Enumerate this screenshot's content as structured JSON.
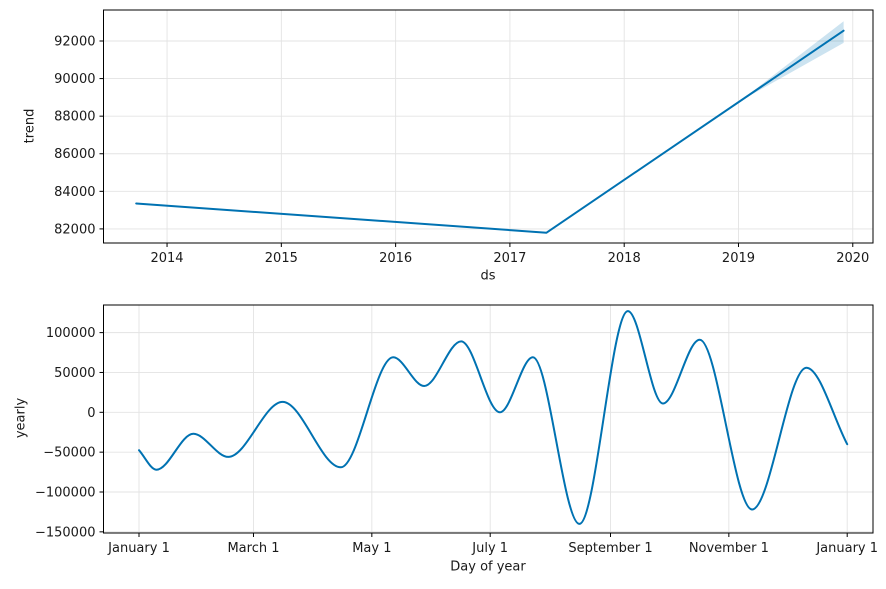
{
  "colors": {
    "line": "#0072B2",
    "band_fill": "rgba(0,114,178,0.2)",
    "grid": "#e3e3e3",
    "spine": "#000000",
    "text": "#1a1a1a",
    "background": "#ffffff"
  },
  "chart_data": [
    {
      "type": "line",
      "id": "trend",
      "title": "",
      "xlabel": "ds",
      "ylabel": "trend",
      "grid": true,
      "legend": "none",
      "xlim": [
        2013.444,
        2020.177
      ],
      "ylim": [
        81250,
        93650
      ],
      "x_ticks": [
        {
          "v": 2014,
          "label": "2014"
        },
        {
          "v": 2015,
          "label": "2015"
        },
        {
          "v": 2016,
          "label": "2016"
        },
        {
          "v": 2017,
          "label": "2017"
        },
        {
          "v": 2018,
          "label": "2018"
        },
        {
          "v": 2019,
          "label": "2019"
        },
        {
          "v": 2020,
          "label": "2020"
        }
      ],
      "y_ticks": [
        {
          "v": 82000,
          "label": "82000"
        },
        {
          "v": 84000,
          "label": "84000"
        },
        {
          "v": 86000,
          "label": "86000"
        },
        {
          "v": 88000,
          "label": "88000"
        },
        {
          "v": 90000,
          "label": "90000"
        },
        {
          "v": 92000,
          "label": "92000"
        }
      ],
      "series": [
        {
          "name": "trend",
          "smooth": false,
          "x": [
            2013.73,
            2017.32,
            2019.92
          ],
          "y": [
            83350,
            81800,
            92550
          ]
        }
      ],
      "band": {
        "name": "trend-uncertainty",
        "x": [
          2019.01,
          2019.92
        ],
        "upper": [
          88790,
          93050
        ],
        "lower": [
          88790,
          91900
        ]
      }
    },
    {
      "type": "line",
      "id": "yearly",
      "title": "",
      "xlabel": "Day of year",
      "ylabel": "yearly",
      "grid": true,
      "legend": "none",
      "xlim": [
        -18.3,
        378.3
      ],
      "ylim": [
        -151450,
        134650
      ],
      "x_ticks": [
        {
          "v": 0,
          "label": "January 1"
        },
        {
          "v": 59,
          "label": "March 1"
        },
        {
          "v": 120,
          "label": "May 1"
        },
        {
          "v": 181,
          "label": "July 1"
        },
        {
          "v": 243,
          "label": "September 1"
        },
        {
          "v": 304,
          "label": "November 1"
        },
        {
          "v": 365,
          "label": "January 1"
        }
      ],
      "y_ticks": [
        {
          "v": -150000,
          "label": "−150000"
        },
        {
          "v": -100000,
          "label": "−100000"
        },
        {
          "v": -50000,
          "label": "−50000"
        },
        {
          "v": 0,
          "label": "0"
        },
        {
          "v": 50000,
          "label": "50000"
        },
        {
          "v": 100000,
          "label": "100000"
        }
      ],
      "series": [
        {
          "name": "yearly",
          "smooth": true,
          "x": [
            0,
            9,
            28,
            46,
            74,
            104,
            131,
            147,
            166,
            186,
            203,
            227,
            252,
            270,
            289,
            316,
            344,
            365
          ],
          "y": [
            -47500,
            -72000,
            -27000,
            -56000,
            13000,
            -69000,
            69000,
            33000,
            89000,
            0,
            69000,
            -140000,
            127000,
            11000,
            91000,
            -122000,
            56000,
            -40000
          ]
        }
      ]
    }
  ]
}
